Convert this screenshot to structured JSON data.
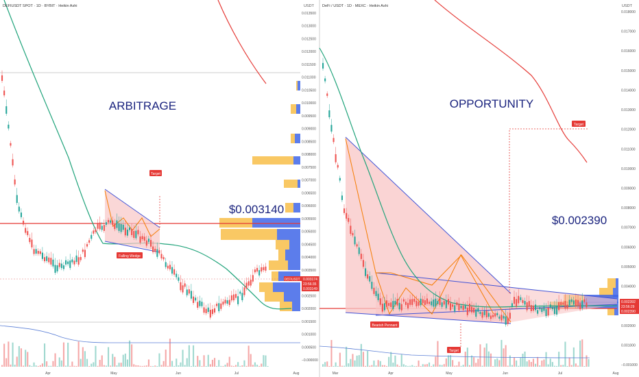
{
  "left": {
    "header": "DEFIUSDT SPOT · 1D · BYBIT · Heikin Ashi",
    "axis_unit": "USDT",
    "y_ticks": [
      "0.013500",
      "0.013000",
      "0.012500",
      "0.012000",
      "0.011500",
      "0.011000",
      "0.010500",
      "0.010000",
      "0.009500",
      "0.009000",
      "0.008500",
      "0.008000",
      "0.007500",
      "0.007000",
      "0.006500",
      "0.006000",
      "0.005500",
      "0.005000",
      "0.004500",
      "0.004000",
      "0.003500",
      "0.003000",
      "0.002500",
      "0.002000",
      "0.001500",
      "0.001000",
      "0.000500",
      "−0.000000"
    ],
    "x_ticks": [
      "Apr",
      "May",
      "Jun",
      "Jul",
      "Aug"
    ],
    "big_label": "ARBITRAGE",
    "price_label": "$0.003140",
    "pattern_label": "Falling Wedge",
    "target_label": "Target",
    "price_tag": {
      "symbol": "DEFIUSDT",
      "price": "0.003174",
      "countdown": "23:56:35",
      "low": "0.003149"
    }
  },
  "right": {
    "header": "DeFi / USDT · 1D · MEXC · Heikin Ashi",
    "axis_unit": "USDT",
    "y_ticks": [
      "0.018000",
      "0.017000",
      "0.016000",
      "0.015000",
      "0.014000",
      "0.013000",
      "0.012000",
      "0.011000",
      "0.010000",
      "0.009000",
      "0.008000",
      "0.007000",
      "0.006000",
      "0.005000",
      "0.004000",
      "0.003000",
      "0.002000",
      "0.001000",
      "−0.001000"
    ],
    "x_ticks": [
      "Mar",
      "Apr",
      "May",
      "Jun",
      "Jul",
      "Aug"
    ],
    "big_label": "OPPORTUNITY",
    "price_label": "$0.002390",
    "pattern_label": "Bearish Pennant",
    "target_up_label": "Target",
    "target_down_label": "Target",
    "price_tag": {
      "price": "0.002392",
      "countdown": "23:56:29",
      "low": "0.002390"
    }
  },
  "colors": {
    "up": "#26a69a",
    "down": "#ef5350",
    "pattern_fill": "#f8c6c6",
    "trendline": "#3f51d6",
    "zigzag": "#f57c00",
    "label_bg": "#e53935",
    "big_text": "#1a237e",
    "ma_green": "#1fa37a",
    "ma_red": "#e53935",
    "volume_line": "#5b7fd6",
    "profile_blue": "#3f66e8",
    "profile_orange": "#f7b530"
  }
}
